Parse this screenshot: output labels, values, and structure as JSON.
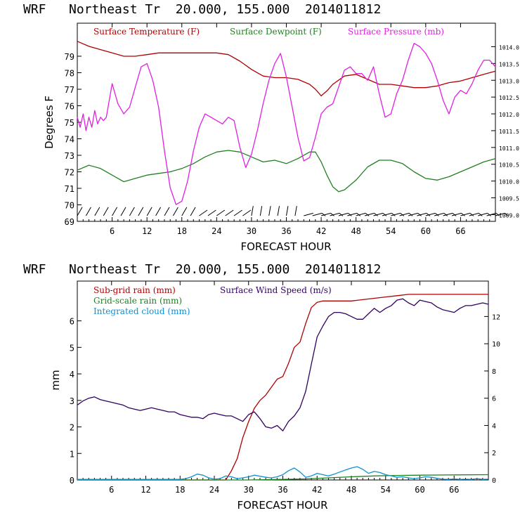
{
  "chart_data": [
    {
      "type": "line",
      "title": "WRF   Northeast Tr  20.000, 155.000  2014011812",
      "xlabel": "FORECAST HOUR",
      "ylabel": "Degrees F",
      "xlim": [
        0,
        72
      ],
      "ylim": [
        69,
        81
      ],
      "y2lim": [
        1008.8,
        1014.7
      ],
      "x_ticks": [
        "6",
        "12",
        "18",
        "24",
        "30",
        "36",
        "42",
        "48",
        "54",
        "60",
        "66"
      ],
      "y_ticks": [
        "69",
        "70",
        "71",
        "72",
        "73",
        "74",
        "75",
        "76",
        "77",
        "78",
        "79"
      ],
      "y2_ticks": [
        "1009.0",
        "1009.5",
        "1010.0",
        "1010.5",
        "1011.0",
        "1011.5",
        "1012.0",
        "1012.5",
        "1013.0",
        "1013.5",
        "1014.0"
      ],
      "legend": [
        "Surface Temperature (F)",
        "Surface Dewpoint (F)",
        "Surface Pressure (mb)"
      ],
      "colors": {
        "temperature": "#b00000",
        "dewpoint": "#208020",
        "pressure": "#e020e0",
        "wind_barbs": "#000000"
      },
      "wind_barbs": "shown along bottom of panel",
      "series": [
        {
          "name": "Surface Temperature (F)",
          "axis": "left",
          "x": [
            0,
            2,
            4,
            6,
            8,
            10,
            12,
            14,
            16,
            18,
            20,
            22,
            24,
            26,
            28,
            30,
            32,
            34,
            36,
            38,
            40,
            41,
            42,
            43,
            44,
            46,
            48,
            50,
            52,
            54,
            56,
            58,
            60,
            62,
            64,
            66,
            68,
            70,
            72
          ],
          "y": [
            79.9,
            79.6,
            79.4,
            79.2,
            79.0,
            79.0,
            79.1,
            79.2,
            79.2,
            79.2,
            79.2,
            79.2,
            79.2,
            79.1,
            78.7,
            78.2,
            77.8,
            77.7,
            77.7,
            77.6,
            77.3,
            77.0,
            76.6,
            76.9,
            77.3,
            77.8,
            77.9,
            77.6,
            77.3,
            77.3,
            77.2,
            77.1,
            77.1,
            77.2,
            77.4,
            77.5,
            77.7,
            77.9,
            78.1
          ]
        },
        {
          "name": "Surface Dewpoint (F)",
          "axis": "left",
          "x": [
            0,
            2,
            4,
            6,
            8,
            10,
            12,
            14,
            16,
            18,
            20,
            22,
            24,
            26,
            28,
            30,
            32,
            34,
            36,
            38,
            40,
            41,
            42,
            43,
            44,
            45,
            46,
            48,
            50,
            52,
            54,
            56,
            58,
            60,
            62,
            64,
            66,
            68,
            70,
            72
          ],
          "y": [
            72.1,
            72.4,
            72.2,
            71.8,
            71.4,
            71.6,
            71.8,
            71.9,
            72.0,
            72.2,
            72.5,
            72.9,
            73.2,
            73.3,
            73.2,
            72.9,
            72.6,
            72.7,
            72.5,
            72.8,
            73.2,
            73.2,
            72.6,
            71.8,
            71.1,
            70.8,
            70.9,
            71.5,
            72.3,
            72.7,
            72.7,
            72.5,
            72.0,
            71.6,
            71.5,
            71.7,
            72.0,
            72.3,
            72.6,
            72.8
          ]
        },
        {
          "name": "Surface Pressure (mb)",
          "axis": "right",
          "x": [
            0,
            0.5,
            1,
            1.5,
            2,
            2.5,
            3,
            3.5,
            4,
            4.5,
            5,
            6,
            7,
            8,
            9,
            10,
            11,
            12,
            13,
            14,
            15,
            16,
            17,
            18,
            19,
            20,
            21,
            22,
            23,
            24,
            25,
            26,
            27,
            28,
            29,
            30,
            31,
            32,
            33,
            34,
            35,
            36,
            37,
            38,
            39,
            40,
            41,
            42,
            43,
            44,
            45,
            46,
            47,
            48,
            49,
            50,
            51,
            52,
            53,
            54,
            55,
            56,
            57,
            58,
            59,
            60,
            61,
            62,
            63,
            64,
            65,
            66,
            67,
            68,
            69,
            70,
            71,
            72
          ],
          "y": [
            1011.9,
            1011.6,
            1012.0,
            1011.5,
            1011.9,
            1011.6,
            1012.1,
            1011.7,
            1011.9,
            1011.8,
            1011.9,
            1012.9,
            1012.3,
            1012.0,
            1012.2,
            1012.8,
            1013.4,
            1013.5,
            1013.0,
            1012.2,
            1010.9,
            1009.8,
            1009.3,
            1009.4,
            1010.0,
            1010.9,
            1011.6,
            1012.0,
            1011.9,
            1011.8,
            1011.7,
            1011.9,
            1011.8,
            1011.0,
            1010.4,
            1010.8,
            1011.5,
            1012.3,
            1013.0,
            1013.5,
            1013.8,
            1013.1,
            1012.2,
            1011.3,
            1010.6,
            1010.7,
            1011.3,
            1012.0,
            1012.2,
            1012.3,
            1012.8,
            1013.3,
            1013.4,
            1013.2,
            1013.2,
            1013.0,
            1013.4,
            1012.6,
            1011.9,
            1012.0,
            1012.6,
            1013.0,
            1013.6,
            1014.1,
            1014.0,
            1013.8,
            1013.5,
            1013.0,
            1012.4,
            1012.0,
            1012.5,
            1012.7,
            1012.6,
            1012.9,
            1013.3,
            1013.6,
            1013.6,
            1013.4
          ]
        }
      ]
    },
    {
      "type": "line",
      "title": "WRF   Northeast Tr  20.000, 155.000  2014011812",
      "xlabel": "FORECAST HOUR",
      "ylabel": "mm",
      "xlim": [
        0,
        72
      ],
      "ylim": [
        0,
        7.5
      ],
      "y2lim": [
        0,
        14.6
      ],
      "x_ticks": [
        "6",
        "12",
        "18",
        "24",
        "30",
        "36",
        "42",
        "48",
        "54",
        "60",
        "66"
      ],
      "y_ticks": [
        "0",
        "1",
        "2",
        "3",
        "4",
        "5",
        "6"
      ],
      "y2_ticks": [
        "0",
        "2",
        "4",
        "6",
        "8",
        "10",
        "12"
      ],
      "legend": [
        "Sub-grid rain (mm)",
        "Surface Wind Speed (m/s)",
        "Grid-scale rain (mm)",
        "Integrated cloud (mm)"
      ],
      "colors": {
        "subgrid": "#b00000",
        "wind": "#300060",
        "gridscale": "#208020",
        "cloud": "#1090d0"
      },
      "series": [
        {
          "name": "Sub-grid rain (mm)",
          "axis": "left",
          "x": [
            0,
            26,
            27,
            28,
            29,
            30,
            31,
            32,
            33,
            34,
            35,
            36,
            37,
            38,
            39,
            40,
            41,
            42,
            43,
            44,
            46,
            48,
            50,
            52,
            54,
            56,
            58,
            60,
            62,
            64,
            66,
            68,
            70,
            72
          ],
          "y": [
            0,
            0,
            0.35,
            0.8,
            1.6,
            2.2,
            2.7,
            3.0,
            3.2,
            3.5,
            3.8,
            3.9,
            4.4,
            5.0,
            5.2,
            5.9,
            6.5,
            6.7,
            6.75,
            6.75,
            6.75,
            6.75,
            6.8,
            6.85,
            6.9,
            6.95,
            7.0,
            7.0,
            7.0,
            7.0,
            7.0,
            7.0,
            7.0,
            7.0
          ]
        },
        {
          "name": "Surface Wind Speed (m/s)",
          "axis": "right",
          "x": [
            0,
            1,
            2,
            3,
            4,
            5,
            6,
            7,
            8,
            9,
            10,
            11,
            12,
            13,
            14,
            15,
            16,
            17,
            18,
            19,
            20,
            21,
            22,
            23,
            24,
            25,
            26,
            27,
            28,
            29,
            30,
            31,
            32,
            33,
            34,
            35,
            36,
            37,
            38,
            39,
            40,
            41,
            42,
            43,
            44,
            45,
            46,
            47,
            48,
            49,
            50,
            51,
            52,
            53,
            54,
            55,
            56,
            57,
            58,
            59,
            60,
            61,
            62,
            63,
            64,
            65,
            66,
            67,
            68,
            69,
            70,
            71,
            72
          ],
          "y": [
            5.5,
            5.8,
            6.0,
            6.1,
            5.9,
            5.8,
            5.7,
            5.6,
            5.5,
            5.3,
            5.2,
            5.1,
            5.2,
            5.3,
            5.2,
            5.1,
            5.0,
            5.0,
            4.8,
            4.7,
            4.6,
            4.6,
            4.5,
            4.8,
            4.9,
            4.8,
            4.7,
            4.7,
            4.5,
            4.3,
            4.8,
            5.0,
            4.5,
            3.9,
            3.8,
            4.0,
            3.6,
            4.3,
            4.7,
            5.3,
            6.5,
            8.5,
            10.5,
            11.3,
            12.0,
            12.3,
            12.3,
            12.2,
            12.0,
            11.8,
            11.8,
            12.2,
            12.6,
            12.3,
            12.6,
            12.8,
            13.2,
            13.3,
            13.0,
            12.8,
            13.2,
            13.1,
            13.0,
            12.7,
            12.5,
            12.4,
            12.3,
            12.6,
            12.8,
            12.8,
            12.9,
            13.0,
            12.9
          ]
        },
        {
          "name": "Grid-scale rain (mm)",
          "axis": "left",
          "x": [
            0,
            30,
            36,
            40,
            44,
            48,
            52,
            56,
            60,
            66,
            72
          ],
          "y": [
            0,
            0,
            0.02,
            0.04,
            0.08,
            0.12,
            0.15,
            0.17,
            0.18,
            0.19,
            0.2
          ]
        },
        {
          "name": "Integrated cloud (mm)",
          "axis": "left",
          "x": [
            0,
            18,
            19,
            20,
            21,
            22,
            23,
            24,
            25,
            26,
            27,
            28,
            29,
            30,
            31,
            32,
            33,
            34,
            35,
            36,
            37,
            38,
            39,
            40,
            41,
            42,
            43,
            44,
            45,
            46,
            47,
            48,
            49,
            50,
            51,
            52,
            53,
            54,
            55,
            56,
            57,
            58,
            59,
            60,
            61,
            62,
            63,
            64,
            65,
            66,
            67,
            68,
            69,
            70,
            71,
            72
          ],
          "y": [
            0.02,
            0.02,
            0.05,
            0.12,
            0.22,
            0.18,
            0.08,
            0.03,
            0.05,
            0.15,
            0.12,
            0.05,
            0.08,
            0.12,
            0.18,
            0.14,
            0.1,
            0.08,
            0.12,
            0.2,
            0.35,
            0.45,
            0.3,
            0.1,
            0.15,
            0.25,
            0.2,
            0.15,
            0.22,
            0.3,
            0.38,
            0.45,
            0.5,
            0.4,
            0.25,
            0.32,
            0.28,
            0.2,
            0.15,
            0.1,
            0.12,
            0.08,
            0.05,
            0.08,
            0.12,
            0.1,
            0.06,
            0.03,
            0.02,
            0.04,
            0.02,
            0.03,
            0.02,
            0.05,
            0.02,
            0.03
          ]
        }
      ]
    }
  ]
}
